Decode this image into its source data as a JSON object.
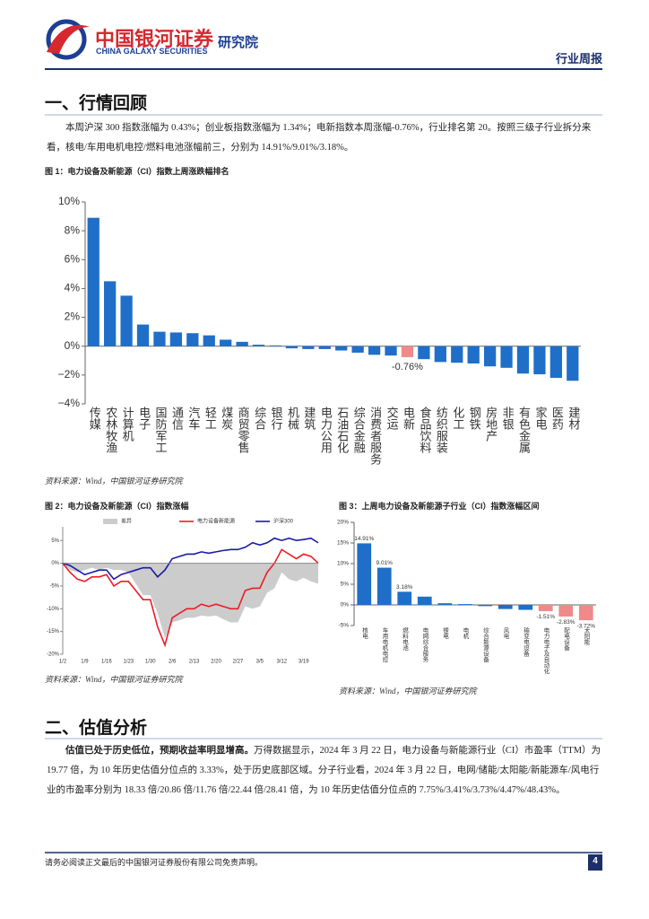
{
  "header": {
    "brand": "中国银河证券",
    "brand_en": "CHINA GALAXY SECURITIES",
    "institute": "研究院",
    "report_type": "行业周报"
  },
  "sections": [
    {
      "title": "一、行情回顾",
      "paragraphs": [
        {
          "text": "本周沪深 300 指数涨幅为 0.43%；创业板指数涨幅为 1.34%；电新指数本周涨幅-0.76%，行业排名第 20。按照三级子行业拆分来看，核电/车用电机电控/燃料电池涨幅前三，分别为 14.91%/9.01%/3.18%。"
        }
      ]
    },
    {
      "title": "二、估值分析",
      "paragraphs": [
        {
          "lead": "估值已处于历史低位，预期收益率明显增高。",
          "text": "万得数据显示，2024 年 3 月 22 日，电力设备与新能源行业（CI）市盈率（TTM）为 19.77 倍，为 10 年历史估值分位点的 3.33%，处于历史底部区域。分子行业看，2024 年 3 月 22 日，电网/储能/太阳能/新能源车/风电行业的市盈率分别为 18.33 倍/20.86 倍/11.76 倍/22.44 倍/28.41 倍，为 10 年历史估值分位点的 7.75%/3.41%/3.73%/4.47%/48.43%。"
        }
      ]
    }
  ],
  "chart_data": [
    {
      "type": "bar",
      "title": "图 1：电力设备及新能源（CI）指数上周涨跌幅排名",
      "source": "资料来源：Wind，中国银河证券研究院",
      "categories": [
        "传媒",
        "农林牧渔",
        "计算机",
        "电子",
        "国防军工",
        "通信",
        "汽车",
        "轻工",
        "煤炭",
        "商贸零售",
        "综合",
        "银行",
        "机械",
        "建筑",
        "电力公用",
        "石油石化",
        "综合金融",
        "消费者服务",
        "交运",
        "电新",
        "食品饮料",
        "纺织服装",
        "化工",
        "钢铁",
        "房地产",
        "非银",
        "有色金属",
        "家电",
        "医药",
        "建材"
      ],
      "values": [
        8.9,
        4.5,
        3.5,
        1.5,
        1.0,
        0.95,
        0.9,
        0.75,
        0.45,
        0.3,
        0.1,
        0.05,
        -0.15,
        -0.2,
        -0.2,
        -0.3,
        -0.45,
        -0.6,
        -0.65,
        -0.76,
        -0.9,
        -1.1,
        -1.15,
        -1.2,
        -1.4,
        -1.5,
        -1.9,
        -1.95,
        -2.2,
        -2.4
      ],
      "value_labels": [
        null,
        null,
        null,
        null,
        null,
        null,
        null,
        null,
        null,
        null,
        null,
        null,
        null,
        null,
        null,
        null,
        null,
        null,
        null,
        "-0.76%",
        null,
        null,
        null,
        null,
        null,
        null,
        null,
        null,
        null,
        null
      ],
      "colors": [
        "#1f6fc8",
        "#1f6fc8",
        "#1f6fc8",
        "#1f6fc8",
        "#1f6fc8",
        "#1f6fc8",
        "#1f6fc8",
        "#1f6fc8",
        "#1f6fc8",
        "#1f6fc8",
        "#1f6fc8",
        "#1f6fc8",
        "#1f6fc8",
        "#1f6fc8",
        "#1f6fc8",
        "#1f6fc8",
        "#1f6fc8",
        "#1f6fc8",
        "#1f6fc8",
        "#f08a8a",
        "#1f6fc8",
        "#1f6fc8",
        "#1f6fc8",
        "#1f6fc8",
        "#1f6fc8",
        "#1f6fc8",
        "#1f6fc8",
        "#1f6fc8",
        "#1f6fc8",
        "#1f6fc8"
      ],
      "label_color": "#e03030",
      "ylim": [
        -4,
        10
      ],
      "yticks": [
        {
          "value": -4,
          "label": "−4%"
        },
        {
          "value": -2,
          "label": "−2%"
        },
        {
          "value": 0,
          "label": "0%"
        },
        {
          "value": 2,
          "label": "2%"
        },
        {
          "value": 4,
          "label": "4%"
        },
        {
          "value": 6,
          "label": "6%"
        },
        {
          "value": 8,
          "label": "8%"
        },
        {
          "value": 10,
          "label": "10%"
        }
      ]
    },
    {
      "type": "line",
      "title": "图 2：电力设备及新能源（CI）指数涨幅",
      "source": "资料来源：Wind，中国银河证券研究院",
      "categories": [
        "1/2",
        null,
        null,
        "1/9",
        null,
        null,
        "1/16",
        null,
        null,
        "1/23",
        null,
        null,
        "1/30",
        null,
        null,
        "2/6",
        null,
        null,
        "2/13",
        null,
        null,
        "2/20",
        null,
        null,
        "2/27",
        null,
        null,
        "3/5",
        null,
        null,
        "3/12",
        null,
        null,
        "3/19",
        null,
        null
      ],
      "series": [
        {
          "name": "差异",
          "color": "#cccccc",
          "style": "area",
          "values": [
            0,
            -1.5,
            -2,
            -1.5,
            -1,
            -1.5,
            -1,
            -1.5,
            -1.5,
            -2,
            -4.5,
            -7,
            -7,
            -11,
            -16.5,
            -13,
            -12.5,
            -12,
            -12,
            -11.5,
            -11.7,
            -11.5,
            -12.3,
            -13,
            -13,
            -9.5,
            -10,
            -9.5,
            -6.5,
            -5.5,
            -2,
            -3.5,
            -4,
            -3.2,
            -4,
            -4.5
          ]
        },
        {
          "name": "电力设备新能源",
          "color": "#ee1c25",
          "style": "line",
          "values": [
            0,
            -2,
            -3.5,
            -4,
            -3,
            -3,
            -2.5,
            -5,
            -4,
            -4,
            -6,
            -8,
            -8,
            -14,
            -18,
            -12,
            -11,
            -10,
            -10,
            -9,
            -9.5,
            -9,
            -9.5,
            -10,
            -10,
            -6,
            -5.5,
            -5.5,
            -2,
            0,
            3,
            2,
            1,
            2,
            1.5,
            0
          ]
        },
        {
          "name": "沪深300",
          "color": "#1a1aa8",
          "style": "line",
          "values": [
            0,
            -0.5,
            -1.5,
            -2.5,
            -2,
            -1.5,
            -1.5,
            -3.5,
            -2.5,
            -2,
            -1.5,
            -1,
            -1,
            -3,
            -1.5,
            1,
            1.5,
            2,
            2,
            2.5,
            2.2,
            2.5,
            2.8,
            3,
            3,
            3.5,
            4.5,
            4,
            4.5,
            5.5,
            5,
            5.5,
            5,
            5.2,
            5.5,
            4.5
          ]
        }
      ],
      "ylim": [
        -20,
        8
      ],
      "yticks": [
        {
          "value": -20,
          "label": "-20%"
        },
        {
          "value": -15,
          "label": "-15%"
        },
        {
          "value": -10,
          "label": "-10%"
        },
        {
          "value": -5,
          "label": "-5%"
        },
        {
          "value": 0,
          "label": "0%"
        },
        {
          "value": 5,
          "label": "5%"
        }
      ]
    },
    {
      "type": "bar",
      "title": "图 3：上周电力设备及新能源子行业（CI）指数涨幅区间",
      "source": "资料来源：Wind，中国银河证券研究院",
      "categories": [
        "核电",
        "车用电机电控",
        "燃料电池",
        "电网综合服务",
        "锂电",
        "电机",
        "综合能源设备",
        "风电",
        "输变电设备",
        "电力电子及自动化",
        "配电设备",
        "太阳能"
      ],
      "values": [
        14.91,
        9.01,
        3.18,
        2.0,
        0.4,
        0.2,
        -0.3,
        -1.0,
        -1.2,
        -1.51,
        -2.83,
        -3.72
      ],
      "value_labels": [
        "14.91%",
        "9.01%",
        "3.18%",
        null,
        null,
        null,
        null,
        null,
        null,
        "-1.51%",
        "-2.83%",
        "-3.72%"
      ],
      "colors": [
        "#1f6fc8",
        "#1f6fc8",
        "#1f6fc8",
        "#1f6fc8",
        "#1f6fc8",
        "#1f6fc8",
        "#1f6fc8",
        "#1f6fc8",
        "#1f6fc8",
        "#f08a8a",
        "#f08a8a",
        "#f08a8a"
      ],
      "label_color": "#e03030",
      "ylim": [
        -5,
        20
      ],
      "yticks": [
        {
          "value": -5,
          "label": "-5%"
        },
        {
          "value": 0,
          "label": "0%"
        },
        {
          "value": 5,
          "label": "5%"
        },
        {
          "value": 10,
          "label": "10%"
        },
        {
          "value": 15,
          "label": "15%"
        },
        {
          "value": 20,
          "label": "20%"
        }
      ]
    }
  ],
  "footer": {
    "disclaimer": "请务必阅读正文最后的中国银河证券股份有限公司免责声明。",
    "page": "4"
  }
}
